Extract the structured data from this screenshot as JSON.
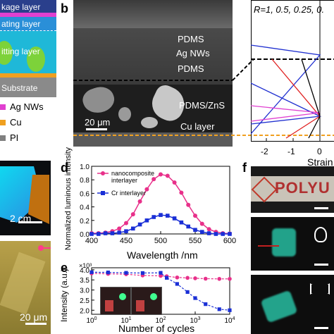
{
  "layer_stack": {
    "layers": [
      "kage layer",
      "ating layer",
      "itting layer",
      "Substrate"
    ]
  },
  "legend_a": {
    "items": [
      {
        "label": "Ag NWs",
        "color": "#e040d0"
      },
      {
        "label": "Cu",
        "color": "#f0a020"
      },
      {
        "label": "PI",
        "color": "#808080"
      }
    ]
  },
  "panel_b": {
    "letter": "b",
    "labels": [
      "PDMS",
      "Ag NWs",
      "PDMS",
      "PDMS/ZnS",
      "Cu layer"
    ],
    "scale_bar": "20 μm"
  },
  "panel_strain": {
    "r_label": "R=1, 0.5, 0.25, 0.",
    "xlabel": "Strain",
    "ticks": [
      "-2",
      "-1",
      "0"
    ]
  },
  "panel_c": {
    "scale_top": "2 cm",
    "scale_bottom": "20 μm"
  },
  "panel_d": {
    "letter": "d",
    "ylabel": "Normalized luminous intensity",
    "xlabel": "Wavelength /nm",
    "legend": [
      "nanocomposite interlayer",
      "Cr interlayer"
    ]
  },
  "panel_e": {
    "letter": "e",
    "ylabel": "Intensity (a.u.)",
    "xlabel": "Number of cycles",
    "exponent": "×10³"
  },
  "panel_f": {
    "letter": "f",
    "sign_text": "POLYU"
  },
  "chart_data": [
    {
      "type": "line",
      "xlabel": "Wavelength /nm",
      "ylabel": "Normalized luminous intensity",
      "xlim": [
        400,
        600
      ],
      "ylim": [
        0,
        1.0
      ],
      "xticks": [
        400,
        450,
        500,
        550,
        600
      ],
      "yticks": [
        0.0,
        0.2,
        0.4,
        0.6,
        0.8,
        1.0
      ],
      "x": [
        400,
        410,
        420,
        430,
        440,
        450,
        460,
        470,
        480,
        490,
        500,
        510,
        520,
        530,
        540,
        550,
        560,
        570,
        580,
        590,
        600
      ],
      "series": [
        {
          "name": "nanocomposite interlayer",
          "color": "#e8308a",
          "values": [
            0.01,
            0.01,
            0.02,
            0.04,
            0.08,
            0.16,
            0.29,
            0.48,
            0.66,
            0.81,
            0.88,
            0.86,
            0.76,
            0.61,
            0.43,
            0.27,
            0.15,
            0.07,
            0.03,
            0.01,
            0.005
          ]
        },
        {
          "name": "Cr interlayer",
          "color": "#1a2fd6",
          "values": [
            0.0,
            0.0,
            0.01,
            0.01,
            0.02,
            0.04,
            0.08,
            0.14,
            0.2,
            0.25,
            0.28,
            0.27,
            0.23,
            0.17,
            0.11,
            0.06,
            0.03,
            0.01,
            0.0,
            0.0,
            0.0
          ]
        }
      ]
    },
    {
      "type": "line",
      "xlabel": "Number of cycles",
      "ylabel": "Intensity (a.u.)",
      "xscale": "log",
      "xlim": [
        1,
        10000
      ],
      "ylim": [
        1.8,
        4.1
      ],
      "xticks": [
        "10^0",
        "10^1",
        "10^2",
        "10^3",
        "10^4"
      ],
      "yticks": [
        2.0,
        2.5,
        3.0,
        3.5,
        4.0
      ],
      "series": [
        {
          "name": "nanocomposite interlayer",
          "color": "#e8308a",
          "x": [
            1,
            3,
            10,
            30,
            100,
            150,
            300,
            600,
            1000,
            2000,
            5000,
            10000
          ],
          "values": [
            3.82,
            3.8,
            3.78,
            3.72,
            3.7,
            3.68,
            3.62,
            3.6,
            3.58,
            3.56,
            3.55,
            3.55
          ]
        },
        {
          "name": "Cr interlayer",
          "color": "#1a2fd6",
          "x": [
            1,
            3,
            10,
            30,
            100,
            150,
            300,
            600,
            1000,
            2000,
            5000,
            10000
          ],
          "values": [
            3.88,
            3.87,
            3.85,
            3.84,
            3.85,
            3.6,
            3.3,
            2.9,
            2.6,
            2.3,
            2.05,
            2.0
          ]
        }
      ]
    }
  ]
}
